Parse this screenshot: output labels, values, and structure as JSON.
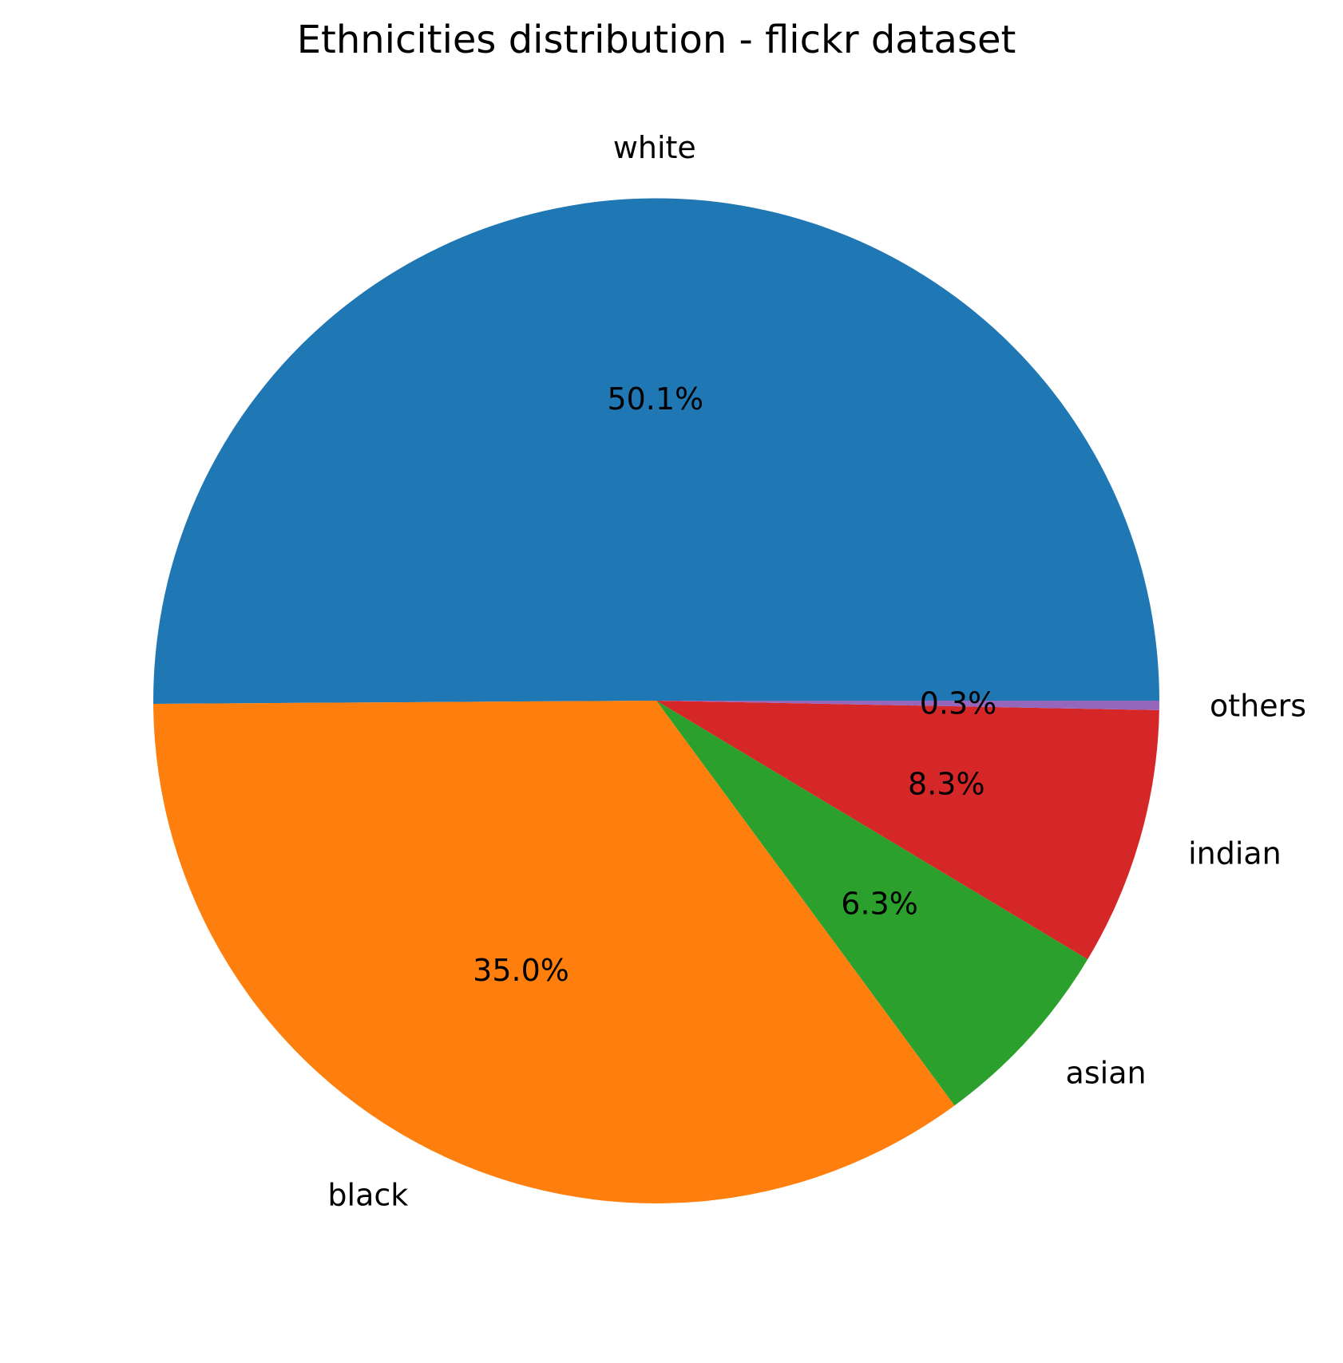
{
  "chart_data": {
    "type": "pie",
    "title": "Ethnicities distribution - flickr dataset",
    "start_angle_deg": 0,
    "direction": "counterclockwise",
    "slices": [
      {
        "label": "white",
        "value": 50.1,
        "pct_text": "50.1%",
        "color": "#1f77b4"
      },
      {
        "label": "black",
        "value": 35.0,
        "pct_text": "35.0%",
        "color": "#ff7f0e"
      },
      {
        "label": "asian",
        "value": 6.3,
        "pct_text": "6.3%",
        "color": "#2ca02c"
      },
      {
        "label": "indian",
        "value": 8.3,
        "pct_text": "8.3%",
        "color": "#d62728"
      },
      {
        "label": "others",
        "value": 0.3,
        "pct_text": "0.3%",
        "color": "#9467bd"
      }
    ]
  }
}
